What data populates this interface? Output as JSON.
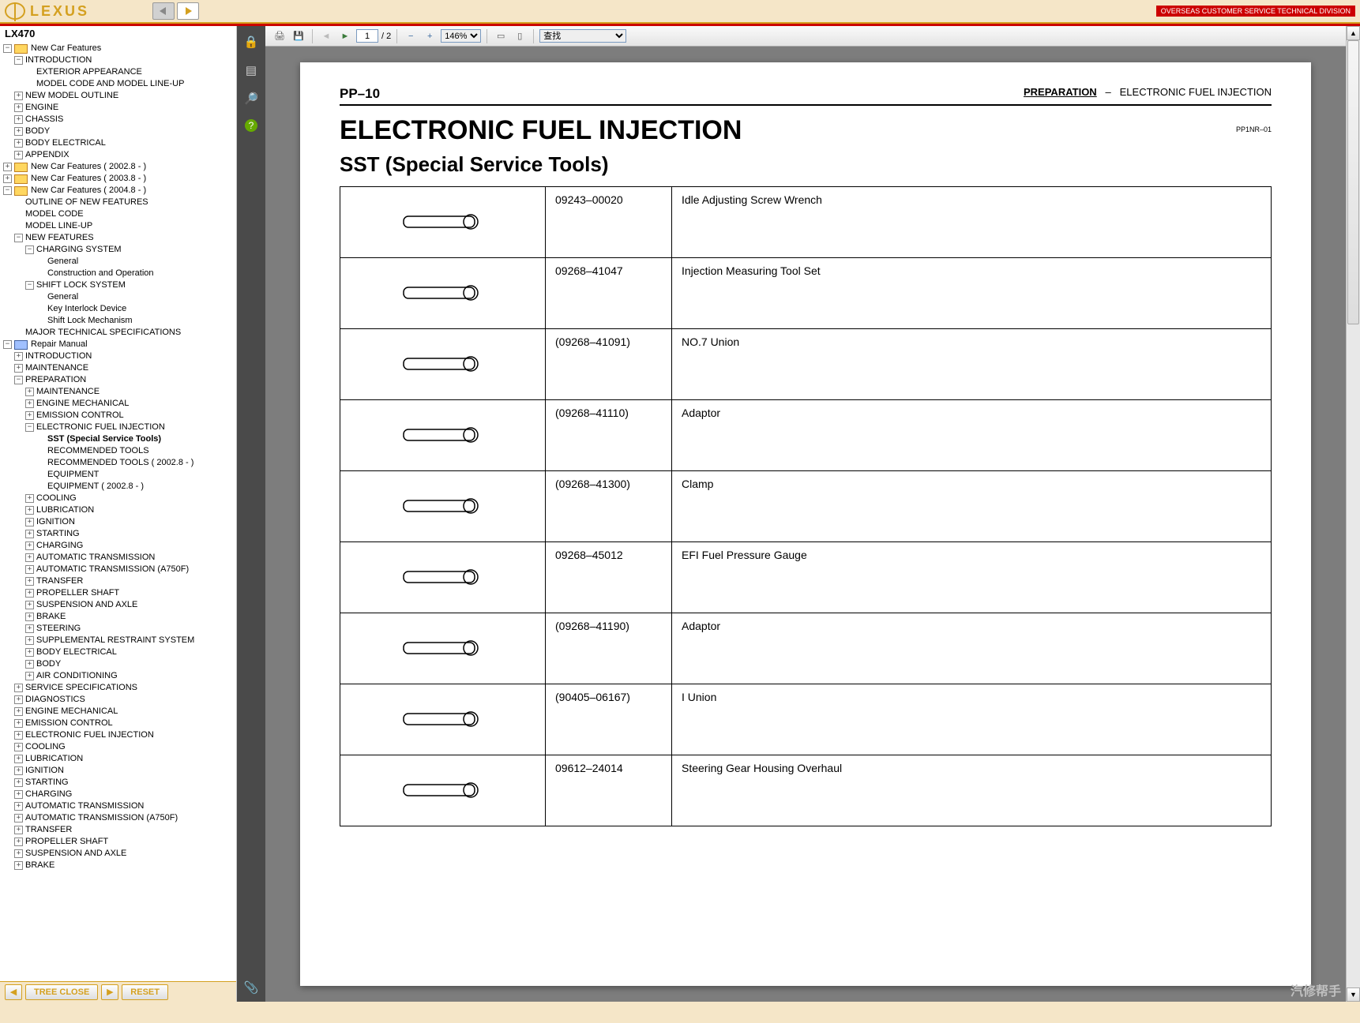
{
  "header": {
    "logo_text": "LEXUS",
    "division": "OVERSEAS CUSTOMER SERVICE TECHNICAL DIVISION"
  },
  "sidebar": {
    "title": "LX470",
    "bottom": {
      "tree_close": "TREE CLOSE",
      "reset": "RESET"
    },
    "tree": [
      {
        "d": 0,
        "t": "minus",
        "ic": "y",
        "lbl": "New Car Features"
      },
      {
        "d": 1,
        "t": "minus",
        "lbl": "INTRODUCTION"
      },
      {
        "d": 2,
        "t": "none",
        "lbl": "EXTERIOR APPEARANCE"
      },
      {
        "d": 2,
        "t": "none",
        "lbl": "MODEL CODE AND MODEL LINE-UP"
      },
      {
        "d": 1,
        "t": "plus",
        "lbl": "NEW MODEL OUTLINE"
      },
      {
        "d": 1,
        "t": "plus",
        "lbl": "ENGINE"
      },
      {
        "d": 1,
        "t": "plus",
        "lbl": "CHASSIS"
      },
      {
        "d": 1,
        "t": "plus",
        "lbl": "BODY"
      },
      {
        "d": 1,
        "t": "plus",
        "lbl": "BODY ELECTRICAL"
      },
      {
        "d": 1,
        "t": "plus",
        "lbl": "APPENDIX"
      },
      {
        "d": 0,
        "t": "plus",
        "ic": "y",
        "lbl": "New Car Features ( 2002.8 - )"
      },
      {
        "d": 0,
        "t": "plus",
        "ic": "y",
        "lbl": "New Car Features ( 2003.8 - )"
      },
      {
        "d": 0,
        "t": "minus",
        "ic": "y",
        "lbl": "New Car Features ( 2004.8 - )"
      },
      {
        "d": 1,
        "t": "none",
        "lbl": "OUTLINE OF NEW FEATURES"
      },
      {
        "d": 1,
        "t": "none",
        "lbl": "MODEL CODE"
      },
      {
        "d": 1,
        "t": "none",
        "lbl": "MODEL LINE-UP"
      },
      {
        "d": 1,
        "t": "minus",
        "lbl": "NEW FEATURES"
      },
      {
        "d": 2,
        "t": "minus",
        "lbl": "CHARGING SYSTEM"
      },
      {
        "d": 3,
        "t": "none",
        "lbl": "General"
      },
      {
        "d": 3,
        "t": "none",
        "lbl": "Construction and Operation"
      },
      {
        "d": 2,
        "t": "minus",
        "lbl": "SHIFT LOCK SYSTEM"
      },
      {
        "d": 3,
        "t": "none",
        "lbl": "General"
      },
      {
        "d": 3,
        "t": "none",
        "lbl": "Key Interlock Device"
      },
      {
        "d": 3,
        "t": "none",
        "lbl": "Shift Lock Mechanism"
      },
      {
        "d": 1,
        "t": "none",
        "lbl": "MAJOR TECHNICAL SPECIFICATIONS"
      },
      {
        "d": 0,
        "t": "minus",
        "ic": "b",
        "lbl": "Repair Manual"
      },
      {
        "d": 1,
        "t": "plus",
        "lbl": "INTRODUCTION"
      },
      {
        "d": 1,
        "t": "plus",
        "lbl": "MAINTENANCE"
      },
      {
        "d": 1,
        "t": "minus",
        "lbl": "PREPARATION"
      },
      {
        "d": 2,
        "t": "plus",
        "lbl": "MAINTENANCE"
      },
      {
        "d": 2,
        "t": "plus",
        "lbl": "ENGINE MECHANICAL"
      },
      {
        "d": 2,
        "t": "plus",
        "lbl": "EMISSION CONTROL"
      },
      {
        "d": 2,
        "t": "minus",
        "lbl": "ELECTRONIC FUEL INJECTION"
      },
      {
        "d": 3,
        "t": "none",
        "lbl": "SST (Special Service Tools)",
        "bold": true
      },
      {
        "d": 3,
        "t": "none",
        "lbl": "RECOMMENDED TOOLS"
      },
      {
        "d": 3,
        "t": "none",
        "lbl": "RECOMMENDED TOOLS ( 2002.8 - )"
      },
      {
        "d": 3,
        "t": "none",
        "lbl": "EQUIPMENT"
      },
      {
        "d": 3,
        "t": "none",
        "lbl": "EQUIPMENT ( 2002.8 - )"
      },
      {
        "d": 2,
        "t": "plus",
        "lbl": "COOLING"
      },
      {
        "d": 2,
        "t": "plus",
        "lbl": "LUBRICATION"
      },
      {
        "d": 2,
        "t": "plus",
        "lbl": "IGNITION"
      },
      {
        "d": 2,
        "t": "plus",
        "lbl": "STARTING"
      },
      {
        "d": 2,
        "t": "plus",
        "lbl": "CHARGING"
      },
      {
        "d": 2,
        "t": "plus",
        "lbl": "AUTOMATIC TRANSMISSION"
      },
      {
        "d": 2,
        "t": "plus",
        "lbl": "AUTOMATIC TRANSMISSION (A750F)"
      },
      {
        "d": 2,
        "t": "plus",
        "lbl": "TRANSFER"
      },
      {
        "d": 2,
        "t": "plus",
        "lbl": "PROPELLER SHAFT"
      },
      {
        "d": 2,
        "t": "plus",
        "lbl": "SUSPENSION AND AXLE"
      },
      {
        "d": 2,
        "t": "plus",
        "lbl": "BRAKE"
      },
      {
        "d": 2,
        "t": "plus",
        "lbl": "STEERING"
      },
      {
        "d": 2,
        "t": "plus",
        "lbl": "SUPPLEMENTAL RESTRAINT SYSTEM"
      },
      {
        "d": 2,
        "t": "plus",
        "lbl": "BODY ELECTRICAL"
      },
      {
        "d": 2,
        "t": "plus",
        "lbl": "BODY"
      },
      {
        "d": 2,
        "t": "plus",
        "lbl": "AIR CONDITIONING"
      },
      {
        "d": 1,
        "t": "plus",
        "lbl": "SERVICE SPECIFICATIONS"
      },
      {
        "d": 1,
        "t": "plus",
        "lbl": "DIAGNOSTICS"
      },
      {
        "d": 1,
        "t": "plus",
        "lbl": "ENGINE MECHANICAL"
      },
      {
        "d": 1,
        "t": "plus",
        "lbl": "EMISSION CONTROL"
      },
      {
        "d": 1,
        "t": "plus",
        "lbl": "ELECTRONIC FUEL INJECTION"
      },
      {
        "d": 1,
        "t": "plus",
        "lbl": "COOLING"
      },
      {
        "d": 1,
        "t": "plus",
        "lbl": "LUBRICATION"
      },
      {
        "d": 1,
        "t": "plus",
        "lbl": "IGNITION"
      },
      {
        "d": 1,
        "t": "plus",
        "lbl": "STARTING"
      },
      {
        "d": 1,
        "t": "plus",
        "lbl": "CHARGING"
      },
      {
        "d": 1,
        "t": "plus",
        "lbl": "AUTOMATIC TRANSMISSION"
      },
      {
        "d": 1,
        "t": "plus",
        "lbl": "AUTOMATIC TRANSMISSION (A750F)"
      },
      {
        "d": 1,
        "t": "plus",
        "lbl": "TRANSFER"
      },
      {
        "d": 1,
        "t": "plus",
        "lbl": "PROPELLER SHAFT"
      },
      {
        "d": 1,
        "t": "plus",
        "lbl": "SUSPENSION AND AXLE"
      },
      {
        "d": 1,
        "t": "plus",
        "lbl": "BRAKE"
      }
    ]
  },
  "toolbar": {
    "page_current": "1",
    "page_total": "/ 2",
    "zoom": "146%",
    "search": "查找"
  },
  "document": {
    "page_no": "PP–10",
    "section_a": "PREPARATION",
    "section_sep": "–",
    "section_b": "ELECTRONIC FUEL INJECTION",
    "h1": "ELECTRONIC FUEL INJECTION",
    "h2": "SST (Special Service Tools)",
    "code": "PP1NR–01",
    "tools": [
      {
        "pn": "09243–00020",
        "name": "Idle Adjusting Screw Wrench"
      },
      {
        "pn": "09268–41047",
        "name": "Injection Measuring Tool Set"
      },
      {
        "pn": "(09268–41091)",
        "name": "NO.7 Union"
      },
      {
        "pn": "(09268–41110)",
        "name": "Adaptor"
      },
      {
        "pn": "(09268–41300)",
        "name": "Clamp"
      },
      {
        "pn": "09268–45012",
        "name": "EFI Fuel Pressure Gauge"
      },
      {
        "pn": "(09268–41190)",
        "name": "Adaptor"
      },
      {
        "pn": "(90405–06167)",
        "name": "I Union"
      },
      {
        "pn": "09612–24014",
        "name": "Steering Gear Housing Overhaul"
      }
    ]
  },
  "watermark": "汽修帮手",
  "colors": {
    "beige": "#f5e6c8",
    "gold": "#d4a020",
    "red": "#c00000",
    "viewer_bg": "#7d7d7d",
    "vside_bg": "#4a4a4a"
  }
}
